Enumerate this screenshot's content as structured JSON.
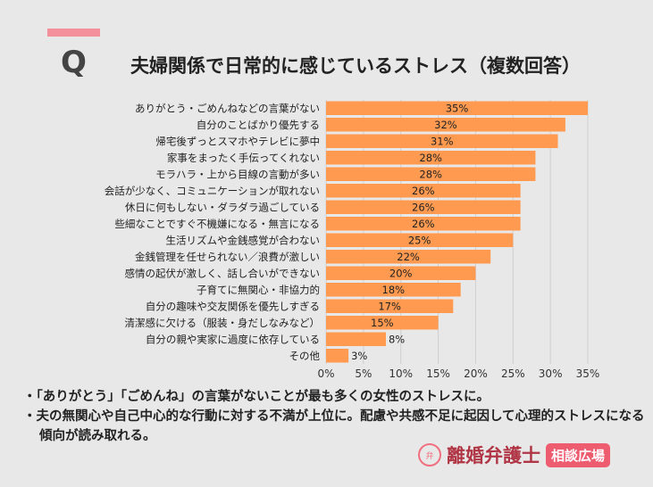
{
  "header": {
    "q_label": "Q",
    "title": "夫婦関係で日常的に感じているストレス（複数回答）"
  },
  "chart_data": {
    "type": "bar",
    "orientation": "horizontal",
    "categories": [
      "ありがとう・ごめんねなどの言葉がない",
      "自分のことばかり優先する",
      "帰宅後ずっとスマホやテレビに夢中",
      "家事をまったく手伝ってくれない",
      "モラハラ・上から目線の言動が多い",
      "会話が少なく、コミュニケーションが取れない",
      "休日に何もしない・ダラダラ過ごしている",
      "些細なことですぐ不機嫌になる・無言になる",
      "生活リズムや金銭感覚が合わない",
      "金銭管理を任せられない／浪費が激しい",
      "感情の起伏が激しく、話し合いができない",
      "子育てに無関心・非協力的",
      "自分の趣味や交友関係を優先しすぎる",
      "清潔感に欠ける（服装・身だしなみなど）",
      "自分の親や実家に過度に依存している",
      "その他"
    ],
    "values": [
      35,
      32,
      31,
      28,
      28,
      26,
      26,
      26,
      25,
      22,
      20,
      18,
      17,
      15,
      8,
      3
    ],
    "xlim": [
      0,
      35
    ],
    "xticks": [
      0,
      5,
      10,
      15,
      20,
      25,
      30,
      35
    ],
    "tick_suffix": "%",
    "grid": true,
    "bar_color": "#ff9a50"
  },
  "notes": [
    "・「ありがとう」「ごめんね」の言葉がないことが最も多くの女性のストレスに。",
    "・夫の無関心や自己中心的な行動に対する不満が上位に。配慮や共感不足に起因して心理的ストレスになる傾向が読み取れる。"
  ],
  "logo": {
    "brand": "離婚弁護士",
    "badge": "相談広場",
    "seal": "弁"
  }
}
